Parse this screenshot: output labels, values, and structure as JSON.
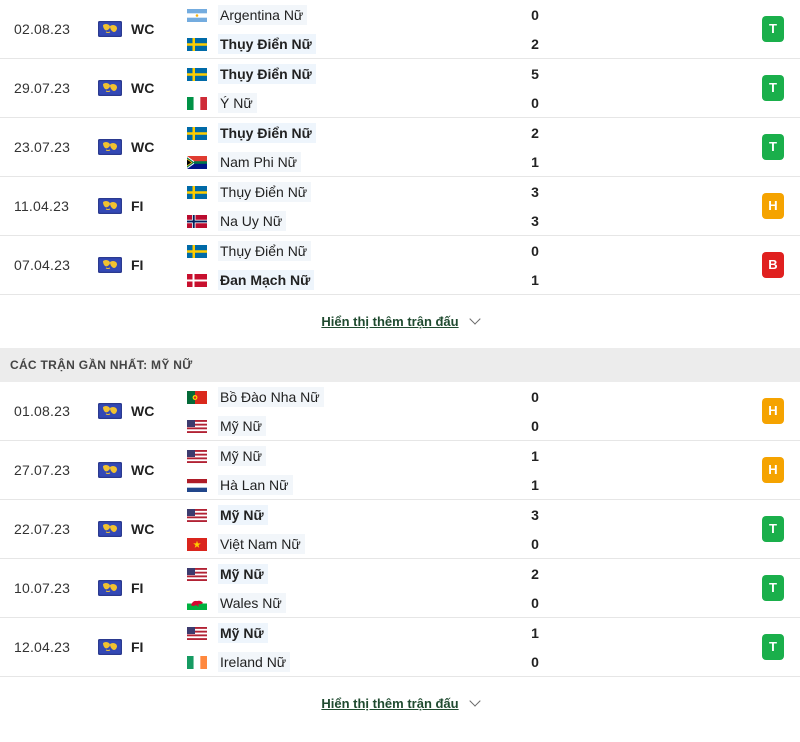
{
  "section1": {
    "matches": [
      {
        "date": "02.08.23",
        "comp": "WC",
        "home": {
          "name": "Argentina Nữ",
          "flag": "argentina",
          "bold": false
        },
        "away": {
          "name": "Thụy Điển Nữ",
          "flag": "sweden",
          "bold": true
        },
        "home_score": "0",
        "away_score": "2",
        "result": "T"
      },
      {
        "date": "29.07.23",
        "comp": "WC",
        "home": {
          "name": "Thụy Điển Nữ",
          "flag": "sweden",
          "bold": true
        },
        "away": {
          "name": "Ý Nữ",
          "flag": "italy",
          "bold": false
        },
        "home_score": "5",
        "away_score": "0",
        "result": "T"
      },
      {
        "date": "23.07.23",
        "comp": "WC",
        "home": {
          "name": "Thụy Điển Nữ",
          "flag": "sweden",
          "bold": true
        },
        "away": {
          "name": "Nam Phi Nữ",
          "flag": "south-africa",
          "bold": false
        },
        "home_score": "2",
        "away_score": "1",
        "result": "T"
      },
      {
        "date": "11.04.23",
        "comp": "FI",
        "home": {
          "name": "Thụy Điển Nữ",
          "flag": "sweden",
          "bold": false
        },
        "away": {
          "name": "Na Uy Nữ",
          "flag": "norway",
          "bold": false
        },
        "home_score": "3",
        "away_score": "3",
        "result": "H"
      },
      {
        "date": "07.04.23",
        "comp": "FI",
        "home": {
          "name": "Thụy Điển Nữ",
          "flag": "sweden",
          "bold": false
        },
        "away": {
          "name": "Đan Mạch Nữ",
          "flag": "denmark",
          "bold": true
        },
        "home_score": "0",
        "away_score": "1",
        "result": "B"
      }
    ],
    "more_label": "Hiển thị thêm trận đấu"
  },
  "section2": {
    "title": "CÁC TRẬN GẦN NHẤT: MỸ NỮ",
    "matches": [
      {
        "date": "01.08.23",
        "comp": "WC",
        "home": {
          "name": "Bồ Đào Nha Nữ",
          "flag": "portugal",
          "bold": false
        },
        "away": {
          "name": "Mỹ Nữ",
          "flag": "usa",
          "bold": false
        },
        "home_score": "0",
        "away_score": "0",
        "result": "H"
      },
      {
        "date": "27.07.23",
        "comp": "WC",
        "home": {
          "name": "Mỹ Nữ",
          "flag": "usa",
          "bold": false
        },
        "away": {
          "name": "Hà Lan Nữ",
          "flag": "netherlands",
          "bold": false
        },
        "home_score": "1",
        "away_score": "1",
        "result": "H"
      },
      {
        "date": "22.07.23",
        "comp": "WC",
        "home": {
          "name": "Mỹ Nữ",
          "flag": "usa",
          "bold": true
        },
        "away": {
          "name": "Việt Nam Nữ",
          "flag": "vietnam",
          "bold": false
        },
        "home_score": "3",
        "away_score": "0",
        "result": "T"
      },
      {
        "date": "10.07.23",
        "comp": "FI",
        "home": {
          "name": "Mỹ Nữ",
          "flag": "usa",
          "bold": true
        },
        "away": {
          "name": "Wales Nữ",
          "flag": "wales",
          "bold": false
        },
        "home_score": "2",
        "away_score": "0",
        "result": "T"
      },
      {
        "date": "12.04.23",
        "comp": "FI",
        "home": {
          "name": "Mỹ Nữ",
          "flag": "usa",
          "bold": true
        },
        "away": {
          "name": "Ireland Nữ",
          "flag": "ireland",
          "bold": false
        },
        "home_score": "1",
        "away_score": "0",
        "result": "T"
      }
    ],
    "more_label": "Hiển thị thêm trận đấu"
  },
  "icons": {
    "competition": "world-cup-icon",
    "expand": "chevron-down-icon"
  },
  "colors": {
    "win": "#1aaf4b",
    "draw": "#f5a300",
    "loss": "#e0201f",
    "link": "#1f4a2f",
    "header_bg": "#ececec"
  }
}
